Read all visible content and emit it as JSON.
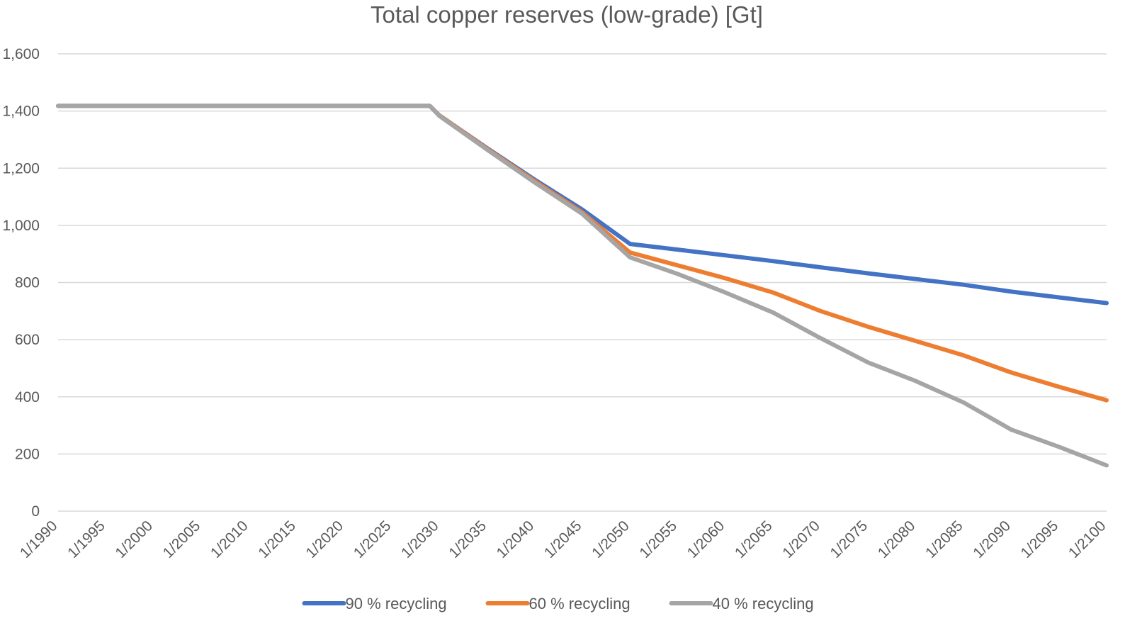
{
  "chart_data": {
    "type": "line",
    "title": "Total copper reserves (low-grade) [Gt]",
    "xlabel": "",
    "ylabel": "",
    "ylim": [
      0,
      1600
    ],
    "y_ticks": [
      "0",
      "200",
      "400",
      "600",
      "800",
      "1,000",
      "1,200",
      "1,400",
      "1,600"
    ],
    "y_tick_values": [
      0,
      200,
      400,
      600,
      800,
      1000,
      1200,
      1400,
      1600
    ],
    "x_ticks": [
      "1/1990",
      "1/1995",
      "1/2000",
      "1/2005",
      "1/2010",
      "1/2015",
      "1/2020",
      "1/2025",
      "1/2030",
      "1/2035",
      "1/2040",
      "1/2045",
      "1/2050",
      "1/2055",
      "1/2060",
      "1/2065",
      "1/2070",
      "1/2075",
      "1/2080",
      "1/2085",
      "1/2090",
      "1/2095",
      "1/2100"
    ],
    "x": [
      "1/1990",
      "1/1995",
      "1/2000",
      "1/2005",
      "1/2010",
      "1/2015",
      "1/2020",
      "1/2025",
      "1/2029",
      "1/2030",
      "1/2035",
      "1/2040",
      "1/2045",
      "1/2050",
      "1/2055",
      "1/2060",
      "1/2065",
      "1/2070",
      "1/2075",
      "1/2080",
      "1/2085",
      "1/2090",
      "1/2095",
      "1/2100"
    ],
    "grid": true,
    "legend_position": "bottom",
    "series": [
      {
        "name": "90 % recycling",
        "color": "#4472c4",
        "values": [
          1418,
          1418,
          1418,
          1418,
          1418,
          1418,
          1418,
          1418,
          1418,
          1385,
          1270,
          1160,
          1055,
          935,
          915,
          895,
          875,
          853,
          832,
          812,
          792,
          768,
          748,
          728
        ]
      },
      {
        "name": "60 % recycling",
        "color": "#ed7d31",
        "values": [
          1418,
          1418,
          1418,
          1418,
          1418,
          1418,
          1418,
          1418,
          1418,
          1385,
          1268,
          1155,
          1045,
          905,
          860,
          815,
          765,
          700,
          645,
          595,
          545,
          485,
          435,
          388
        ]
      },
      {
        "name": "40 % recycling",
        "color": "#a5a5a5",
        "values": [
          1418,
          1418,
          1418,
          1418,
          1418,
          1418,
          1418,
          1418,
          1418,
          1383,
          1265,
          1150,
          1040,
          888,
          830,
          765,
          695,
          605,
          520,
          455,
          380,
          285,
          225,
          160
        ]
      }
    ]
  }
}
